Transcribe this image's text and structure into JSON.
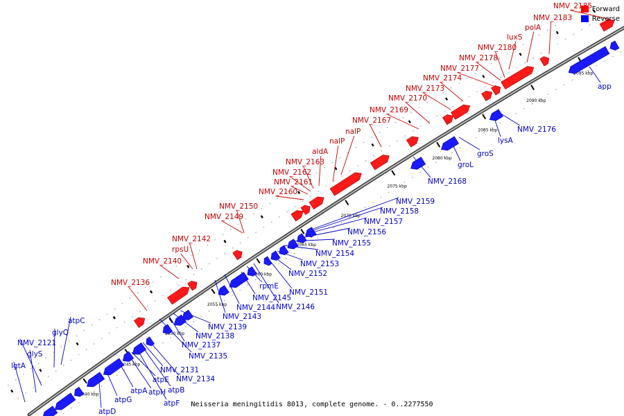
{
  "legend": {
    "forward": {
      "label": "Forward",
      "color": "#ff0000"
    },
    "reverse": {
      "label": "Reverse",
      "color": "#0000ff"
    }
  },
  "caption": "Neisseria meningitidis 8013, complete genome. - 0..2277550",
  "ticks": [
    {
      "label": "2040 kbp"
    },
    {
      "label": "2045 kbp"
    },
    {
      "label": "2050 kbp"
    },
    {
      "label": "2055 kbp"
    },
    {
      "label": "2060 kbp"
    },
    {
      "label": "2065 kbp"
    },
    {
      "label": "2070 kbp"
    },
    {
      "label": "2075 kbp"
    },
    {
      "label": "2080 kbp"
    },
    {
      "label": "2085 kbp"
    },
    {
      "label": "2090 kbp"
    },
    {
      "label": "2095 kbp"
    }
  ],
  "forward_labels": [
    "NMV_2136",
    "NMV_2140",
    "rpsU",
    "NMV_2142",
    "NMV_2149",
    "NMV_2150",
    "NMV_2160",
    "NMV_2161",
    "NMV_2162",
    "NMV_2163",
    "aldA",
    "nalP",
    "nalP",
    "NMV_2167",
    "NMV_2169",
    "NMV_2170",
    "NMV_2173",
    "NMV_2174",
    "NMV_2177",
    "NMV_2178",
    "NMV_2180",
    "luxS",
    "polA",
    "NMV_2183",
    "NMV_2185"
  ],
  "reverse_labels": [
    "lgtA",
    "glyS",
    "NMV_2121",
    "glyQ",
    "atpC",
    "atpD",
    "atpG",
    "atpA",
    "atpH",
    "atpE",
    "atpF",
    "atpB",
    "NMV_2131",
    "NMV_2134",
    "NMV_2135",
    "NMV_2137",
    "NMV_2138",
    "NMV_2139",
    "NMV_2143",
    "NMV_2144",
    "NMV_2145",
    "NMV_2146",
    "rpmE",
    "NMV_2151",
    "NMV_2152",
    "NMV_2153",
    "NMV_2154",
    "NMV_2155",
    "NMV_2156",
    "NMV_2157",
    "NMV_2158",
    "NMV_2159",
    "NMV_2168",
    "groL",
    "groS",
    "lysA",
    "NMV_2176",
    "app"
  ]
}
